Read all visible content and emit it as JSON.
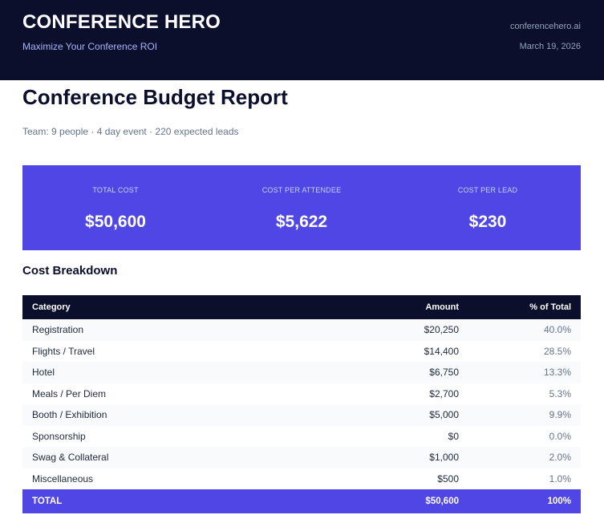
{
  "header": {
    "brand": "CONFERENCE HERO",
    "tagline": "Maximize Your Conference ROI",
    "site": "conferencehero.ai",
    "date": "March 19, 2026"
  },
  "report": {
    "title": "Conference Budget Report",
    "subtitle": "Team: 9 people · 4 day event · 220 expected leads"
  },
  "stats": [
    {
      "label": "TOTAL COST",
      "value": "$50,600"
    },
    {
      "label": "COST PER ATTENDEE",
      "value": "$5,622"
    },
    {
      "label": "COST PER LEAD",
      "value": "$230"
    }
  ],
  "breakdown": {
    "title": "Cost Breakdown",
    "columns": [
      "Category",
      "Amount",
      "% of Total"
    ],
    "rows": [
      {
        "category": "Registration",
        "amount": "$20,250",
        "pct": "40.0%"
      },
      {
        "category": "Flights / Travel",
        "amount": "$14,400",
        "pct": "28.5%"
      },
      {
        "category": "Hotel",
        "amount": "$6,750",
        "pct": "13.3%"
      },
      {
        "category": "Meals / Per Diem",
        "amount": "$2,700",
        "pct": "5.3%"
      },
      {
        "category": "Booth / Exhibition",
        "amount": "$5,000",
        "pct": "9.9%"
      },
      {
        "category": "Sponsorship",
        "amount": "$0",
        "pct": "0.0%"
      },
      {
        "category": "Swag & Collateral",
        "amount": "$1,000",
        "pct": "2.0%"
      },
      {
        "category": "Miscellaneous",
        "amount": "$500",
        "pct": "1.0%"
      }
    ],
    "total": {
      "label": "TOTAL",
      "amount": "$50,600",
      "pct": "100%"
    }
  },
  "colors": {
    "header_bg": "#0b0f2c",
    "accent": "#4f46e5",
    "tagline": "#a5b4fc",
    "muted": "#64748b",
    "row_alt": "#f8fafc"
  }
}
